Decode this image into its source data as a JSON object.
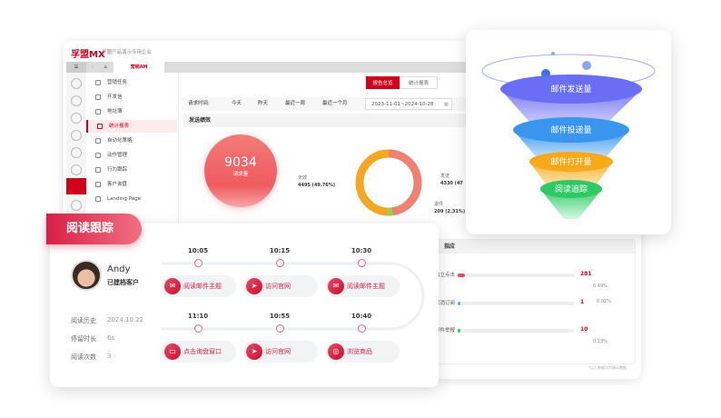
{
  "app": {
    "logo": "孚盟MX",
    "subtitle": "孚盟产品演示专用企业",
    "tab": "营销AM"
  },
  "menu": [
    "营销任务",
    "开发信",
    "地址簿",
    "统计报表",
    "自动化策略",
    "动作管理",
    "行为跟踪",
    "客户询盘",
    "Landing Page"
  ],
  "active_menu": "统计报表",
  "view_tabs": [
    "报告总览",
    "统计报表"
  ],
  "filter": {
    "label": "请求时间:",
    "options": [
      "今天",
      "昨天",
      "最近一周",
      "最近一个月"
    ],
    "date_range": "2023-11-01~2024-10-28"
  },
  "section_title": "发送绩效",
  "request": {
    "value": "9034",
    "label": "请求量"
  },
  "donut": {
    "segments": [
      {
        "label": "无效",
        "value": "4495",
        "pct": "(49.76%)",
        "color": "#f5a623"
      },
      {
        "label": "发送",
        "value": "4330",
        "pct": "(47",
        "color": "#f08070"
      },
      {
        "label": "退件",
        "value": "209",
        "pct": "(2.31%)",
        "color": "#7ed957"
      }
    ],
    "fractions": [
      0.4976,
      0.4793,
      0.0231
    ]
  },
  "response": {
    "title": "指应",
    "rows": [
      {
        "label": "独立点击",
        "value": "281",
        "pct": "6.49%",
        "fill": 0.0649,
        "color": "#f0484e"
      },
      {
        "label": "取消订阅",
        "value": "1",
        "pct": "0.02%",
        "fill": 0.0002,
        "color": "#1ec8e8"
      },
      {
        "label": "邮件举报",
        "value": "10",
        "pct": "0.23%",
        "fill": 0.0023,
        "color": "#2ed84a"
      }
    ]
  },
  "footnote": "*以上数据均为演示数据",
  "funnel": [
    "邮件发送量",
    "邮件投递量",
    "邮件打开量",
    "阅读追踪"
  ],
  "reading": {
    "badge": "阅读跟踪",
    "name": "Andy",
    "status": "已建档客户",
    "stats": [
      {
        "label": "阅读历史",
        "value": "2024.10.22"
      },
      {
        "label": "停留时长",
        "value": "6s"
      },
      {
        "label": "阅读次数",
        "value": "3"
      }
    ],
    "events": [
      {
        "time": "10:05",
        "label": "阅读邮件主题",
        "icon": "envelope-icon"
      },
      {
        "time": "10:15",
        "label": "访问官网",
        "icon": "paper-plane-icon"
      },
      {
        "time": "10:30",
        "label": "阅读邮件主题",
        "icon": "envelope-icon"
      },
      {
        "time": "11:10",
        "label": "点击询盘窗口",
        "icon": "chat-window-icon"
      },
      {
        "time": "10:55",
        "label": "访问官网",
        "icon": "paper-plane-icon"
      },
      {
        "time": "10:40",
        "label": "浏览商品",
        "icon": "compass-icon"
      }
    ]
  }
}
